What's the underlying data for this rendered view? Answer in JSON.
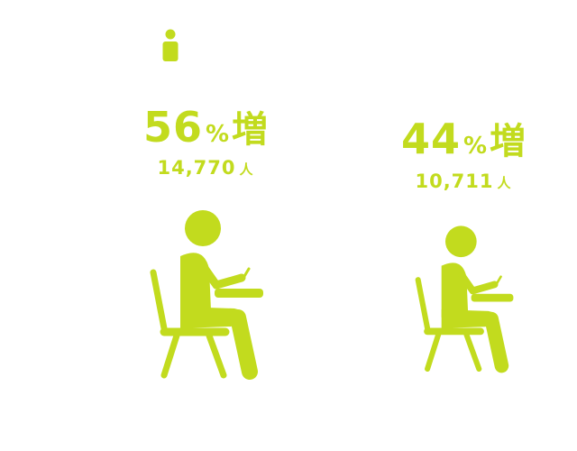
{
  "colors": {
    "accent": "#c2db1e",
    "background": "#ffffff"
  },
  "icon": {
    "name": "person-icon"
  },
  "stats": [
    {
      "percent": "56",
      "percent_sign": "%",
      "suffix": "増",
      "count": "14,770",
      "count_unit": "人",
      "figure": "seated-student-icon"
    },
    {
      "percent": "44",
      "percent_sign": "%",
      "suffix": "増",
      "count": "10,711",
      "count_unit": "人",
      "figure": "seated-student-icon"
    }
  ]
}
